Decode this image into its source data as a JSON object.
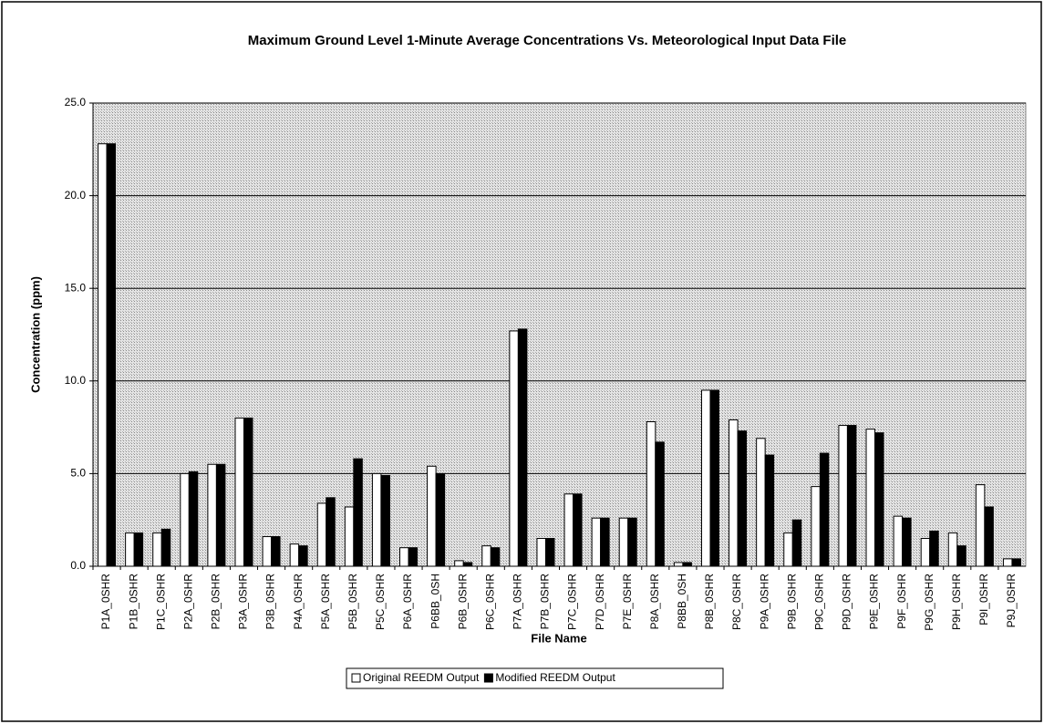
{
  "chart_data": {
    "type": "bar",
    "title": "Maximum Ground Level 1-Minute Average Concentrations Vs. Meteorological Input Data File",
    "x_label": "File Name",
    "y_label": "Concentration (ppm)",
    "categories": [
      "P1A_0SHR",
      "P1B_0SHR",
      "P1C_0SHR",
      "P2A_0SHR",
      "P2B_0SHR",
      "P3A_0SHR",
      "P3B_0SHR",
      "P4A_0SHR",
      "P5A_0SHR",
      "P5B_0SHR",
      "P5C_0SHR",
      "P6A_0SHR",
      "P6BB_0SH",
      "P6B_0SHR",
      "P6C_0SHR",
      "P7A_0SHR",
      "P7B_0SHR",
      "P7C_0SHR",
      "P7D_0SHR",
      "P7E_0SHR",
      "P8A_0SHR",
      "P8BB_0SH",
      "P8B_0SHR",
      "P8C_0SHR",
      "P9A_0SHR",
      "P9B_0SHR",
      "P9C_0SHR",
      "P9D_0SHR",
      "P9E_0SHR",
      "P9F_0SHR",
      "P9G_0SHR",
      "P9H_0SHR",
      "P9I_0SHR",
      "P9J_0SHR"
    ],
    "series": [
      {
        "name": "Original REEDM Output",
        "color": "#ffffff",
        "values": [
          22.8,
          1.8,
          1.8,
          5.0,
          5.5,
          8.0,
          1.6,
          1.2,
          3.4,
          3.2,
          5.0,
          1.0,
          5.4,
          0.3,
          1.1,
          12.7,
          1.5,
          3.9,
          2.6,
          2.6,
          7.8,
          0.2,
          9.5,
          7.9,
          6.9,
          1.8,
          4.3,
          7.6,
          7.4,
          2.7,
          1.5,
          1.8,
          4.4,
          0.4
        ]
      },
      {
        "name": "Modified REEDM Output",
        "color": "#000000",
        "values": [
          22.8,
          1.8,
          2.0,
          5.1,
          5.5,
          8.0,
          1.6,
          1.1,
          3.7,
          5.8,
          4.9,
          1.0,
          5.0,
          0.2,
          1.0,
          12.8,
          1.5,
          3.9,
          2.6,
          2.6,
          6.7,
          0.2,
          9.5,
          7.3,
          6.0,
          2.5,
          6.1,
          7.6,
          7.2,
          2.6,
          1.9,
          1.1,
          3.2,
          0.4
        ]
      }
    ],
    "ylim": [
      0,
      25
    ],
    "yticks": [
      {
        "value": 0,
        "label": "0.0"
      },
      {
        "value": 5,
        "label": "5.0"
      },
      {
        "value": 10,
        "label": "10.0"
      },
      {
        "value": 15,
        "label": "15.0"
      },
      {
        "value": 20,
        "label": "20.0"
      },
      {
        "value": 25,
        "label": "25.0"
      }
    ],
    "grid": true,
    "legend": "bottom"
  }
}
